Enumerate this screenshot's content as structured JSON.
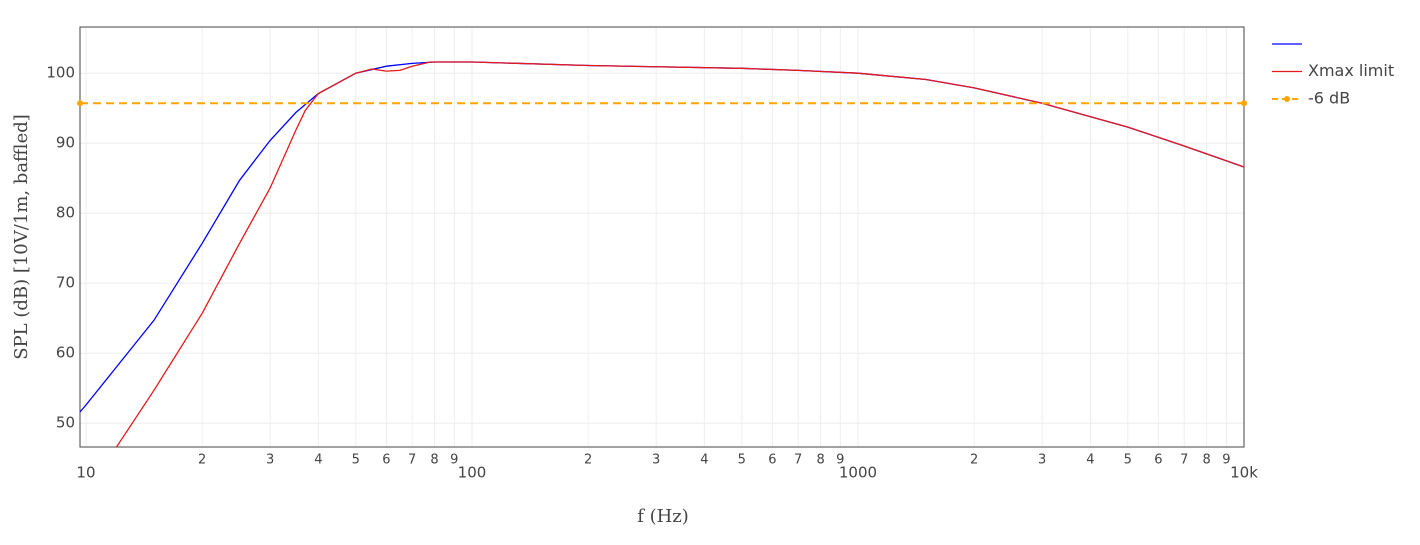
{
  "chart_data": {
    "type": "line",
    "x_label": "f (Hz)",
    "y_label": "SPL (dB) [10V/1m, baffled]",
    "log_x": true,
    "grid": true,
    "legend": "right",
    "xlim": [
      9.65,
      10000
    ],
    "ylim": [
      46.6,
      106.6
    ],
    "xticks": [
      {
        "value": 10,
        "label": "10"
      },
      {
        "value": 20,
        "label": "2"
      },
      {
        "value": 30,
        "label": "3"
      },
      {
        "value": 40,
        "label": "4"
      },
      {
        "value": 50,
        "label": "5"
      },
      {
        "value": 60,
        "label": "6"
      },
      {
        "value": 70,
        "label": "7"
      },
      {
        "value": 80,
        "label": "8"
      },
      {
        "value": 90,
        "label": "9"
      },
      {
        "value": 100,
        "label": "100"
      },
      {
        "value": 200,
        "label": "2"
      },
      {
        "value": 300,
        "label": "3"
      },
      {
        "value": 400,
        "label": "4"
      },
      {
        "value": 500,
        "label": "5"
      },
      {
        "value": 600,
        "label": "6"
      },
      {
        "value": 700,
        "label": "7"
      },
      {
        "value": 800,
        "label": "8"
      },
      {
        "value": 900,
        "label": "9"
      },
      1000,
      {
        "value": 2000,
        "label": "2"
      },
      {
        "value": 3000,
        "label": "3"
      },
      {
        "value": 4000,
        "label": "4"
      },
      {
        "value": 5000,
        "label": "5"
      },
      {
        "value": 6000,
        "label": "6"
      },
      {
        "value": 7000,
        "label": "7"
      },
      {
        "value": 8000,
        "label": "8"
      },
      {
        "value": 9000,
        "label": "9"
      },
      {
        "value": 10000,
        "label": "10k"
      }
    ],
    "yticks": [
      50,
      60,
      70,
      80,
      90,
      100
    ],
    "series": [
      {
        "color": "#0000ff",
        "x": [
          9.65,
          10,
          15,
          20,
          25,
          30,
          35,
          40,
          50,
          60,
          70,
          80,
          100,
          200,
          500,
          700,
          1000,
          1500,
          2000,
          3000,
          5000,
          7000,
          10000
        ],
        "values": [
          51.6,
          52.6,
          64.7,
          75.7,
          84.7,
          90.4,
          94.4,
          97.1,
          100,
          101,
          101.4,
          101.6,
          101.6,
          101.1,
          100.7,
          100.4,
          100,
          99.1,
          97.9,
          95.7,
          92.3,
          89.6,
          86.6
        ]
      },
      {
        "name": "Xmax limit",
        "color": "#e41a1c",
        "x": [
          12,
          15,
          20,
          25,
          30,
          35,
          37,
          40,
          50,
          55,
          60,
          65,
          70,
          78,
          100,
          200,
          500,
          700,
          1000,
          1500,
          2000,
          3000,
          5000,
          7000,
          10000
        ],
        "values": [
          46.6,
          54.7,
          65.7,
          75.7,
          83.6,
          91.9,
          94.7,
          97.1,
          100,
          100.6,
          100.3,
          100.4,
          101,
          101.6,
          101.6,
          101.1,
          100.7,
          100.4,
          100,
          99.1,
          97.9,
          95.7,
          92.3,
          89.6,
          86.6
        ]
      },
      {
        "name": "-6 dB",
        "color": "#ffa500",
        "dash": true,
        "markers": true,
        "x": [
          9.65,
          10000
        ],
        "values": [
          95.7,
          95.7
        ]
      }
    ]
  }
}
